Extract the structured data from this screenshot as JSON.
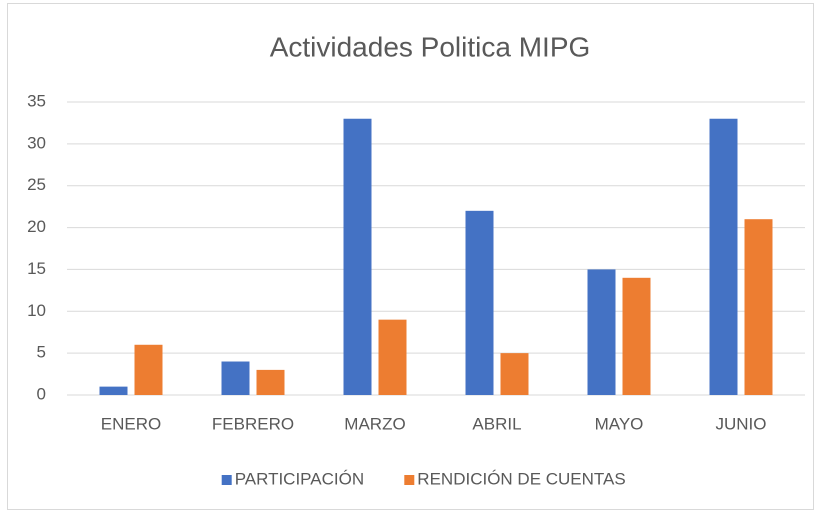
{
  "chart_data": {
    "type": "bar",
    "title": "Actividades Politica MIPG",
    "categories": [
      "ENERO",
      "FEBRERO",
      "MARZO",
      "ABRIL",
      "MAYO",
      "JUNIO"
    ],
    "series": [
      {
        "name": "PARTICIPACIÓN",
        "color": "#4472c4",
        "values": [
          1,
          4,
          33,
          22,
          15,
          33
        ]
      },
      {
        "name": "RENDICIÓN DE CUENTAS",
        "color": "#ed7d31",
        "values": [
          6,
          3,
          9,
          5,
          14,
          21
        ]
      }
    ],
    "ylim": [
      0,
      35
    ],
    "yticks": [
      0,
      5,
      10,
      15,
      20,
      25,
      30,
      35
    ],
    "grid": true,
    "legend": "bottom"
  }
}
